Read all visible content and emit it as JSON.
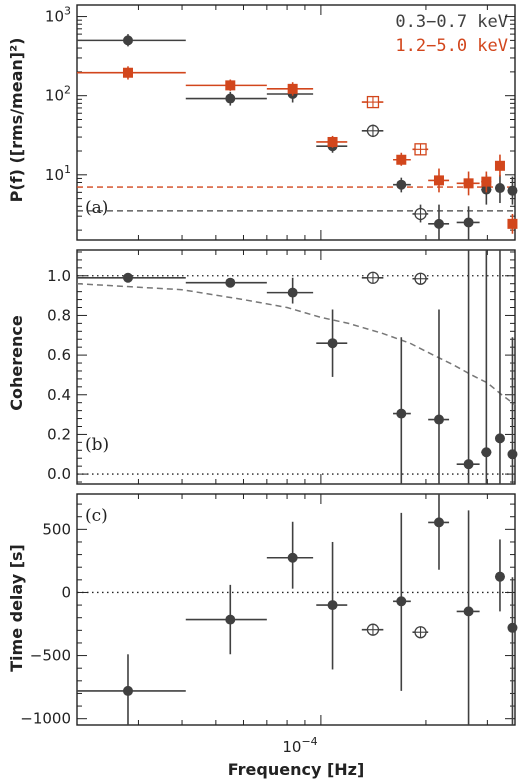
{
  "colors": {
    "soft": "#404040",
    "hard": "#d2461c",
    "axis": "#222222",
    "model": "#777777"
  },
  "xaxis": {
    "label": "Frequency [Hz]",
    "scale": "log",
    "range": [
      2e-05,
      0.00036
    ],
    "major_tick_value": 0.0001,
    "major_tick_label": "10",
    "major_tick_exponent": "−4"
  },
  "legend": {
    "placement": "top-right",
    "items": [
      {
        "text": "0.3−0.7 keV",
        "color_key": "soft"
      },
      {
        "text": "1.2−5.0 keV",
        "color_key": "hard"
      }
    ]
  },
  "chart_data": [
    {
      "id": "a",
      "type": "scatter",
      "tag": "(a)",
      "ylabel": "P(f)  ([rms/mean]²)",
      "yscale": "log",
      "ylim": [
        1.5,
        1400
      ],
      "yticks": [
        {
          "value": 10,
          "base": "10",
          "exp": "1"
        },
        {
          "value": 100,
          "base": "10",
          "exp": "2"
        },
        {
          "value": 1000,
          "base": "10",
          "exp": "3"
        }
      ],
      "reference_lines": [
        {
          "y": 7.0,
          "color_key": "hard",
          "style": "dashed"
        },
        {
          "y": 3.5,
          "color_key": "soft",
          "style": "dashed"
        }
      ],
      "series": [
        {
          "name": "0.3−0.7 keV",
          "color_key": "soft",
          "marker": "filled-circle",
          "points": [
            {
              "x": 2.8e-05,
              "xlo": 2e-05,
              "xhi": 4.1e-05,
              "y": 500,
              "ylo": 420,
              "yhi": 600
            },
            {
              "x": 5.5e-05,
              "xlo": 4.1e-05,
              "xhi": 7e-05,
              "y": 92,
              "ylo": 75,
              "yhi": 112
            },
            {
              "x": 8.3e-05,
              "xlo": 7e-05,
              "xhi": 9.5e-05,
              "y": 105,
              "ylo": 82,
              "yhi": 132
            },
            {
              "x": 0.000108,
              "xlo": 9.7e-05,
              "xhi": 0.000119,
              "y": 23,
              "ylo": 19,
              "yhi": 28
            },
            {
              "x": 0.00017,
              "xlo": 0.000161,
              "xhi": 0.000181,
              "y": 7.5,
              "ylo": 6.0,
              "yhi": 9.2
            },
            {
              "x": 0.000218,
              "xlo": 0.000203,
              "xhi": 0.000233,
              "y": 2.4,
              "ylo": 1.5,
              "yhi": 4.2
            },
            {
              "x": 0.000265,
              "xlo": 0.000245,
              "xhi": 0.000285,
              "y": 2.5,
              "ylo": 1.5,
              "yhi": 4.0
            },
            {
              "x": 0.000298,
              "xlo": 0.000288,
              "xhi": 0.000308,
              "y": 6.5,
              "ylo": 4.2,
              "yhi": 10
            },
            {
              "x": 0.000326,
              "xlo": 0.000316,
              "xhi": 0.000336,
              "y": 6.8,
              "ylo": 4.4,
              "yhi": 10
            },
            {
              "x": 0.000354,
              "xlo": 0.000344,
              "xhi": 0.000364,
              "y": 6.3,
              "ylo": 4.2,
              "yhi": 9.5
            }
          ]
        },
        {
          "name": "0.3−0.7 keV (open)",
          "color_key": "soft",
          "marker": "open-circle",
          "points": [
            {
              "x": 0.000141,
              "xlo": 0.000131,
              "xhi": 0.000151,
              "y": 36,
              "ylo": 30,
              "yhi": 43
            },
            {
              "x": 0.000193,
              "xlo": 0.000183,
              "xhi": 0.000203,
              "y": 3.2,
              "ylo": 2.5,
              "yhi": 4.2
            }
          ]
        },
        {
          "name": "1.2−5.0 keV",
          "color_key": "hard",
          "marker": "filled-square",
          "points": [
            {
              "x": 2.8e-05,
              "xlo": 2e-05,
              "xhi": 4.1e-05,
              "y": 195,
              "ylo": 160,
              "yhi": 235
            },
            {
              "x": 5.5e-05,
              "xlo": 4.1e-05,
              "xhi": 7e-05,
              "y": 135,
              "ylo": 115,
              "yhi": 160
            },
            {
              "x": 8.3e-05,
              "xlo": 7e-05,
              "xhi": 9.5e-05,
              "y": 122,
              "ylo": 100,
              "yhi": 148
            },
            {
              "x": 0.000108,
              "xlo": 9.7e-05,
              "xhi": 0.000119,
              "y": 26,
              "ylo": 22,
              "yhi": 31
            },
            {
              "x": 0.00017,
              "xlo": 0.000161,
              "xhi": 0.000181,
              "y": 15.5,
              "ylo": 13,
              "yhi": 19
            },
            {
              "x": 0.000218,
              "xlo": 0.000203,
              "xhi": 0.000233,
              "y": 8.5,
              "ylo": 6.0,
              "yhi": 12
            },
            {
              "x": 0.000265,
              "xlo": 0.000245,
              "xhi": 0.000285,
              "y": 7.8,
              "ylo": 5.5,
              "yhi": 11
            },
            {
              "x": 0.000298,
              "xlo": 0.000288,
              "xhi": 0.000308,
              "y": 8.2,
              "ylo": 6.0,
              "yhi": 11
            },
            {
              "x": 0.000326,
              "xlo": 0.000316,
              "xhi": 0.000336,
              "y": 13,
              "ylo": 9.5,
              "yhi": 18
            },
            {
              "x": 0.000354,
              "xlo": 0.000344,
              "xhi": 0.000364,
              "y": 2.4,
              "ylo": 1.8,
              "yhi": 3.2
            }
          ]
        },
        {
          "name": "1.2−5.0 keV (open)",
          "color_key": "hard",
          "marker": "open-square",
          "points": [
            {
              "x": 0.000141,
              "xlo": 0.000131,
              "xhi": 0.000151,
              "y": 83,
              "ylo": 70,
              "yhi": 98
            },
            {
              "x": 0.000193,
              "xlo": 0.000183,
              "xhi": 0.000203,
              "y": 21,
              "ylo": 18,
              "yhi": 24
            }
          ]
        }
      ]
    },
    {
      "id": "b",
      "type": "scatter",
      "tag": "(b)",
      "ylabel": "Coherence",
      "yscale": "linear",
      "ylim": [
        -0.05,
        1.13
      ],
      "yticks": [
        {
          "value": 0,
          "label": "0.0"
        },
        {
          "value": 0.2,
          "label": "0.2"
        },
        {
          "value": 0.4,
          "label": "0.4"
        },
        {
          "value": 0.6,
          "label": "0.6"
        },
        {
          "value": 0.8,
          "label": "0.8"
        },
        {
          "value": 1.0,
          "label": "1.0"
        }
      ],
      "reference_lines": [
        {
          "y": 1.0,
          "style": "dotted"
        },
        {
          "y": 0.0,
          "style": "dotted"
        }
      ],
      "model_curve": {
        "style": "dashed",
        "x": [
          2e-05,
          4e-05,
          6e-05,
          8e-05,
          0.0001,
          0.00012,
          0.00015,
          0.00018,
          0.00021,
          0.00024,
          0.00027,
          0.0003,
          0.00033,
          0.00036
        ],
        "y": [
          0.96,
          0.93,
          0.88,
          0.84,
          0.79,
          0.76,
          0.71,
          0.66,
          0.6,
          0.55,
          0.5,
          0.46,
          0.4,
          0.35
        ]
      },
      "series": [
        {
          "name": "coherence",
          "color_key": "soft",
          "marker": "filled-circle",
          "points": [
            {
              "x": 2.8e-05,
              "xlo": 2e-05,
              "xhi": 4.1e-05,
              "y": 0.99,
              "ylo": 0.98,
              "yhi": 1.0
            },
            {
              "x": 5.5e-05,
              "xlo": 4.1e-05,
              "xhi": 7e-05,
              "y": 0.965,
              "ylo": 0.95,
              "yhi": 0.975
            },
            {
              "x": 8.3e-05,
              "xlo": 7e-05,
              "xhi": 9.5e-05,
              "y": 0.915,
              "ylo": 0.86,
              "yhi": 0.99
            },
            {
              "x": 0.000108,
              "xlo": 9.7e-05,
              "xhi": 0.000119,
              "y": 0.66,
              "ylo": 0.49,
              "yhi": 0.83
            },
            {
              "x": 0.00017,
              "xlo": 0.000161,
              "xhi": 0.000181,
              "y": 0.305,
              "ylo": -0.05,
              "yhi": 0.69
            },
            {
              "x": 0.000218,
              "xlo": 0.000203,
              "xhi": 0.000233,
              "y": 0.275,
              "ylo": -0.05,
              "yhi": 0.83
            },
            {
              "x": 0.000265,
              "xlo": 0.000245,
              "xhi": 0.000285,
              "y": 0.05,
              "ylo": -0.05,
              "yhi": 1.13
            },
            {
              "x": 0.000298,
              "xlo": 0.000288,
              "xhi": 0.000308,
              "y": 0.11,
              "ylo": -0.05,
              "yhi": 1.13
            },
            {
              "x": 0.000326,
              "xlo": 0.000316,
              "xhi": 0.000336,
              "y": 0.18,
              "ylo": -0.05,
              "yhi": 1.13
            },
            {
              "x": 0.000354,
              "xlo": 0.000344,
              "xhi": 0.000364,
              "y": 0.1,
              "ylo": -0.05,
              "yhi": 0.69
            }
          ]
        },
        {
          "name": "coherence (open)",
          "color_key": "soft",
          "marker": "open-circle",
          "points": [
            {
              "x": 0.000141,
              "xlo": 0.000131,
              "xhi": 0.000151,
              "y": 0.99,
              "ylo": 0.98,
              "yhi": 1.0
            },
            {
              "x": 0.000193,
              "xlo": 0.000183,
              "xhi": 0.000203,
              "y": 0.985,
              "ylo": 0.975,
              "yhi": 0.995
            }
          ]
        }
      ]
    },
    {
      "id": "c",
      "type": "scatter",
      "tag": "(c)",
      "ylabel": "Time delay [s]",
      "yscale": "linear",
      "ylim": [
        -1050,
        780
      ],
      "yticks": [
        {
          "value": -1000,
          "label": "−1000"
        },
        {
          "value": -500,
          "label": "−500"
        },
        {
          "value": 0,
          "label": "0"
        },
        {
          "value": 500,
          "label": "500"
        }
      ],
      "reference_lines": [
        {
          "y": 0,
          "style": "dotted"
        }
      ],
      "series": [
        {
          "name": "time delay",
          "color_key": "soft",
          "marker": "filled-circle",
          "points": [
            {
              "x": 2.8e-05,
              "xlo": 2e-05,
              "xhi": 4.1e-05,
              "y": -780,
              "ylo": -1050,
              "yhi": -490
            },
            {
              "x": 5.5e-05,
              "xlo": 4.1e-05,
              "xhi": 7e-05,
              "y": -215,
              "ylo": -490,
              "yhi": 60
            },
            {
              "x": 8.3e-05,
              "xlo": 7e-05,
              "xhi": 9.5e-05,
              "y": 275,
              "ylo": 30,
              "yhi": 560
            },
            {
              "x": 0.000108,
              "xlo": 9.7e-05,
              "xhi": 0.000119,
              "y": -100,
              "ylo": -610,
              "yhi": 400
            },
            {
              "x": 0.00017,
              "xlo": 0.000161,
              "xhi": 0.000181,
              "y": -70,
              "ylo": -780,
              "yhi": 630
            },
            {
              "x": 0.000218,
              "xlo": 0.000203,
              "xhi": 0.000233,
              "y": 555,
              "ylo": 180,
              "yhi": 780
            },
            {
              "x": 0.000265,
              "xlo": 0.000245,
              "xhi": 0.000285,
              "y": -150,
              "ylo": -1050,
              "yhi": 650
            },
            {
              "x": 0.000326,
              "xlo": 0.000316,
              "xhi": 0.000336,
              "y": 125,
              "ylo": -150,
              "yhi": 420
            },
            {
              "x": 0.000354,
              "xlo": 0.000344,
              "xhi": 0.000364,
              "y": -280,
              "ylo": -1050,
              "yhi": 120
            }
          ]
        },
        {
          "name": "time delay (open)",
          "color_key": "soft",
          "marker": "open-circle",
          "points": [
            {
              "x": 0.000141,
              "xlo": 0.000131,
              "xhi": 0.000151,
              "y": -295,
              "ylo": -335,
              "yhi": -255
            },
            {
              "x": 0.000193,
              "xlo": 0.000183,
              "xhi": 0.000203,
              "y": -315,
              "ylo": -355,
              "yhi": -275
            }
          ]
        }
      ]
    }
  ]
}
